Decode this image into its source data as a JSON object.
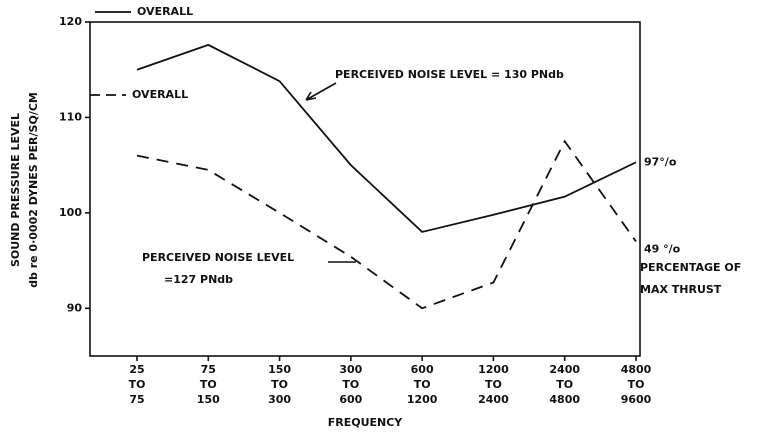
{
  "chart_data": {
    "type": "line",
    "ylabel": [
      "SOUND PRESSURE LEVEL",
      "db re 0·0002 DYNES PER/SQ/CM"
    ],
    "xlabel": "FREQUENCY",
    "categories": [
      [
        "25",
        "TO",
        "75"
      ],
      [
        "75",
        "TO",
        "150"
      ],
      [
        "150",
        "TO",
        "300"
      ],
      [
        "300",
        "TO",
        "600"
      ],
      [
        "600",
        "TO",
        "1200"
      ],
      [
        "1200",
        "TO",
        "2400"
      ],
      [
        "2400",
        "TO",
        "4800"
      ],
      [
        "4800",
        "TO",
        "9600"
      ]
    ],
    "series": [
      {
        "name": "OVERALL",
        "color": "#111111",
        "dash": false,
        "end_label": "97°/o",
        "values": [
          115,
          117.6,
          113.8,
          105,
          98,
          99.8,
          101.7,
          105.3
        ]
      },
      {
        "name": "OVERALL",
        "color": "#111111",
        "dash": true,
        "end_label": "49 °/o",
        "values": [
          106,
          104.5,
          100,
          95.4,
          90,
          92.7,
          107.5,
          97
        ]
      }
    ],
    "annotations": [
      [
        "PERCEIVED NOISE LEVEL = 130 PNdb"
      ],
      [
        "PERCEIVED NOISE LEVEL",
        "=127 PNdb"
      ],
      [
        "PERCENTAGE OF",
        "MAX THRUST"
      ]
    ],
    "ylim": [
      85,
      120
    ],
    "yticks": [
      90,
      100,
      110,
      120
    ],
    "grid": false
  }
}
